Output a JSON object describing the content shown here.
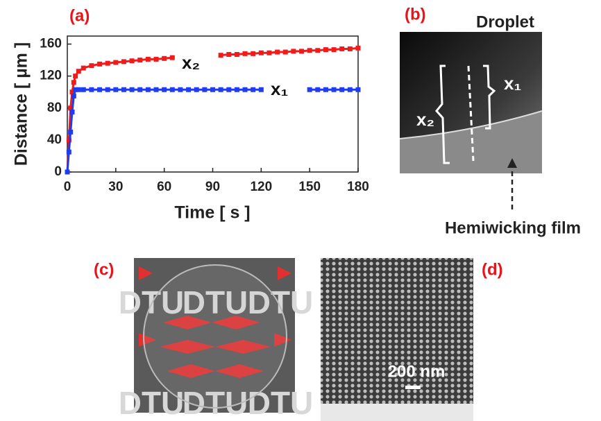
{
  "chart_data": {
    "type": "scatter",
    "title": "(a)",
    "x_label": "Time [ s ]",
    "y_label": "Distance [ µm ]",
    "x": [
      0,
      1,
      2,
      3,
      4,
      5,
      7,
      10,
      15,
      20,
      25,
      30,
      35,
      40,
      45,
      50,
      55,
      60,
      65,
      70,
      75,
      80,
      85,
      90,
      95,
      100,
      105,
      110,
      115,
      120,
      125,
      130,
      135,
      140,
      145,
      150,
      155,
      160,
      165,
      170,
      175,
      180
    ],
    "series": [
      {
        "name": "x₂",
        "color": "#f01c1c",
        "values": [
          0,
          40,
          80,
          100,
          112,
          120,
          126,
          130,
          133,
          135,
          136,
          137,
          138,
          139,
          140,
          141,
          141,
          142,
          143,
          null,
          null,
          null,
          null,
          null,
          146,
          147,
          147,
          148,
          148,
          149,
          149,
          150,
          150,
          151,
          151,
          152,
          152,
          153,
          153,
          154,
          154,
          155
        ]
      },
      {
        "name": "x₁",
        "color": "#1f3cf0",
        "values": [
          0,
          25,
          50,
          75,
          95,
          103,
          103,
          103,
          103,
          103,
          103,
          103,
          103,
          103,
          103,
          103,
          103,
          103,
          103,
          103,
          103,
          103,
          103,
          103,
          103,
          103,
          103,
          103,
          103,
          103,
          null,
          null,
          null,
          null,
          null,
          103,
          103,
          103,
          103,
          103,
          103,
          103
        ]
      }
    ],
    "xlim": [
      0,
      180
    ],
    "xticks": [
      0,
      30,
      60,
      90,
      120,
      150,
      180
    ],
    "ylim": [
      0,
      170
    ],
    "yticks": [
      0,
      40,
      80,
      120,
      160
    ]
  },
  "panels": {
    "b": {
      "label": "(b)",
      "top_label": "Droplet",
      "bottom_label": "Hemiwicking film",
      "x1": "x₁",
      "x2": "x₂"
    },
    "c": {
      "label": "(c)",
      "logo": "DTU"
    },
    "d": {
      "label": "(d)",
      "scale_bar": "200 nm"
    }
  }
}
